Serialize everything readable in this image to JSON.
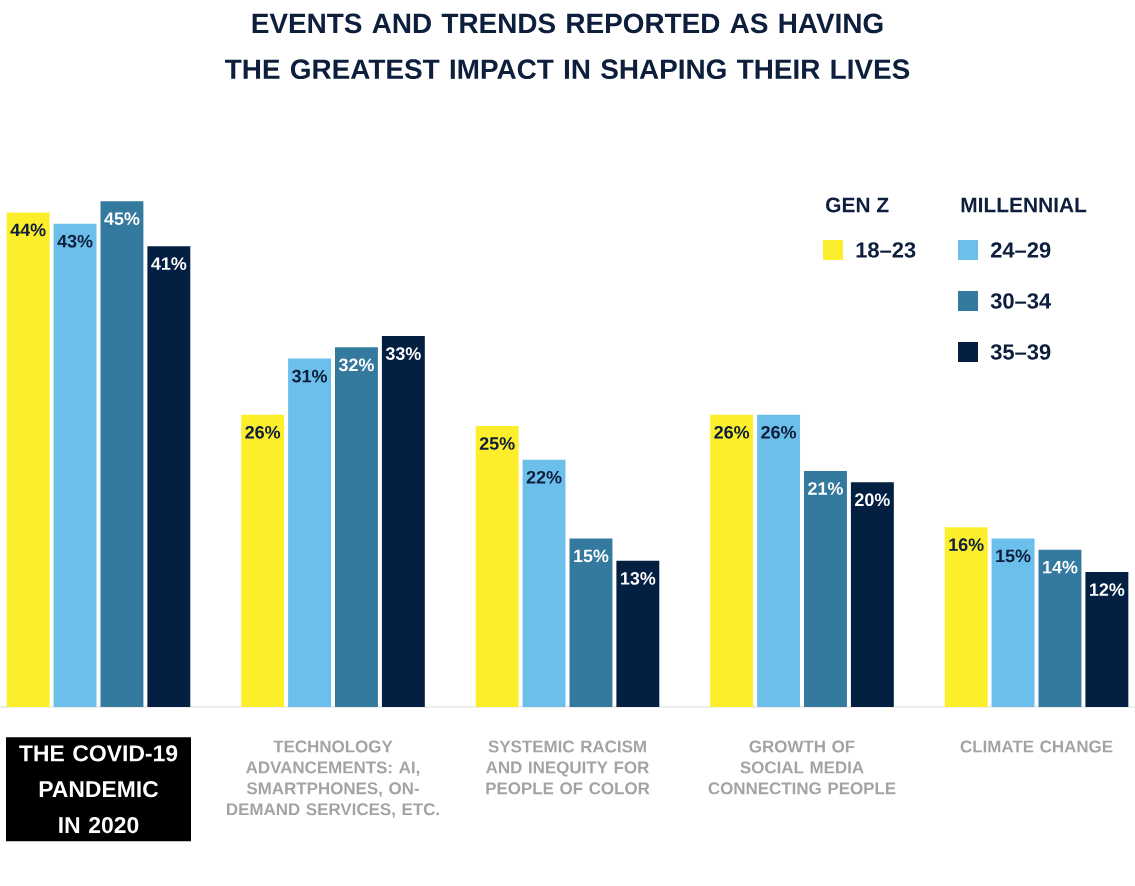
{
  "chart_data": {
    "type": "bar",
    "title": "EVENTS AND TRENDS REPORTED AS HAVING THE GREATEST IMPACT IN SHAPING THEIR LIVES",
    "categories": [
      "THE COVID-19 PANDEMIC IN 2020",
      "TECHNOLOGY ADVANCEMENTS: AI, SMARTPHONES, ON-DEMAND SERVICES, ETC.",
      "SYSTEMIC RACISM AND INEQUITY FOR PEOPLE OF COLOR",
      "GROWTH OF SOCIAL MEDIA CONNECTING PEOPLE",
      "CLIMATE CHANGE"
    ],
    "series": [
      {
        "name": "18–23",
        "color": "#fcee2a",
        "values": [
          44,
          26,
          25,
          26,
          16
        ],
        "value_labels": [
          "44%",
          "26%",
          "25%",
          "26%",
          "16%"
        ]
      },
      {
        "name": "24–29",
        "color": "#6bbfea",
        "values": [
          43,
          31,
          22,
          26,
          15
        ],
        "value_labels": [
          "43%",
          "31%",
          "22%",
          "26%",
          "15%"
        ]
      },
      {
        "name": "30–34",
        "color": "#347a9e",
        "values": [
          45,
          32,
          15,
          21,
          14
        ],
        "value_labels": [
          "45%",
          "32%",
          "15%",
          "21%",
          "14%"
        ]
      },
      {
        "name": "35–39",
        "color": "#031f42",
        "values": [
          41,
          33,
          13,
          20,
          12
        ],
        "value_labels": [
          "41%",
          "33%",
          "13%",
          "20%",
          "12%"
        ]
      }
    ],
    "annotations": [
      "GEN Z",
      "MILLENNIAL"
    ],
    "legend": "top right"
  }
}
